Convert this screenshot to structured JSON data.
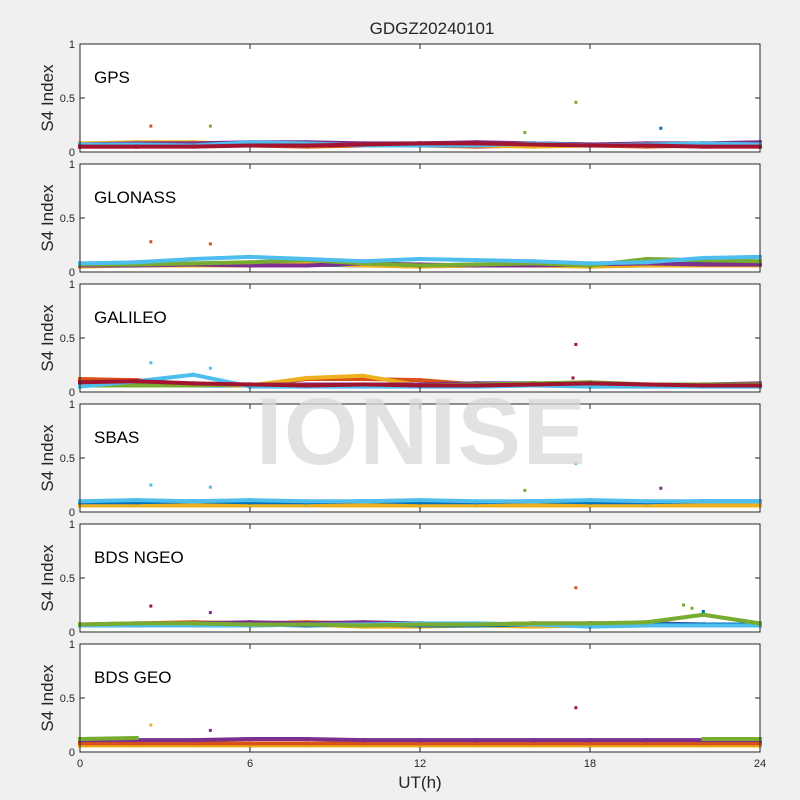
{
  "chart_data": {
    "type": "scatter",
    "title": "GDGZ20240101",
    "xlabel": "UT(h)",
    "ylabel": "S4 Index",
    "xlim": [
      0,
      24
    ],
    "ylim": [
      0,
      1
    ],
    "xticks": [
      "0",
      "6",
      "12",
      "18",
      "24"
    ],
    "yticks": [
      "0",
      "0.5",
      "1"
    ],
    "grid": false,
    "watermark": "IONISE",
    "colors": [
      "#0072BD",
      "#D95319",
      "#EDB120",
      "#7E2F8E",
      "#77AC30",
      "#4DBEEE",
      "#A2142F"
    ],
    "panels": [
      {
        "label": "GPS",
        "x": [
          0,
          2,
          4,
          6,
          8,
          10,
          12,
          14,
          16,
          18,
          20,
          22,
          24
        ],
        "series": [
          {
            "color": "#0072BD",
            "values": [
              0.06,
              0.07,
              0.07,
              0.08,
              0.08,
              0.07,
              0.06,
              0.07,
              0.08,
              0.07,
              0.07,
              0.08,
              0.07
            ]
          },
          {
            "color": "#D95319",
            "values": [
              0.05,
              0.05,
              0.06,
              0.06,
              0.05,
              0.06,
              0.06,
              0.05,
              0.06,
              0.06,
              0.05,
              0.06,
              0.05
            ]
          },
          {
            "color": "#EDB120",
            "values": [
              0.08,
              0.09,
              0.09,
              0.07,
              0.06,
              0.07,
              0.07,
              0.06,
              0.05,
              0.06,
              0.07,
              0.07,
              0.07
            ]
          },
          {
            "color": "#7E2F8E",
            "values": [
              0.07,
              0.08,
              0.08,
              0.09,
              0.09,
              0.08,
              0.08,
              0.09,
              0.08,
              0.07,
              0.08,
              0.08,
              0.09
            ]
          },
          {
            "color": "#4DBEEE",
            "values": [
              0.07,
              0.07,
              0.06,
              0.09,
              0.08,
              0.06,
              0.06,
              0.06,
              0.08,
              0.06,
              0.07,
              0.08,
              0.07
            ]
          },
          {
            "color": "#A2142F",
            "values": [
              0.05,
              0.05,
              0.05,
              0.06,
              0.06,
              0.07,
              0.08,
              0.08,
              0.07,
              0.06,
              0.06,
              0.05,
              0.05
            ]
          }
        ],
        "outliers": [
          {
            "x": 2.5,
            "y": 0.24,
            "color": "#D95319"
          },
          {
            "x": 4.6,
            "y": 0.24,
            "color": "#77AC30"
          },
          {
            "x": 17.5,
            "y": 0.46,
            "color": "#77AC30"
          },
          {
            "x": 20.5,
            "y": 0.22,
            "color": "#0072BD"
          },
          {
            "x": 15.7,
            "y": 0.18,
            "color": "#77AC30"
          }
        ]
      },
      {
        "label": "GLONASS",
        "x": [
          0,
          2,
          4,
          6,
          8,
          10,
          12,
          14,
          16,
          18,
          20,
          22,
          24
        ],
        "series": [
          {
            "color": "#0072BD",
            "values": [
              0.07,
              0.07,
              0.06,
              0.07,
              0.07,
              0.06,
              0.06,
              0.07,
              0.07,
              0.06,
              0.07,
              0.08,
              0.07
            ]
          },
          {
            "color": "#D95319",
            "values": [
              0.07,
              0.06,
              0.07,
              0.08,
              0.07,
              0.07,
              0.06,
              0.06,
              0.07,
              0.07,
              0.07,
              0.07,
              0.08
            ]
          },
          {
            "color": "#EDB120",
            "values": [
              0.05,
              0.06,
              0.06,
              0.06,
              0.08,
              0.06,
              0.05,
              0.06,
              0.06,
              0.05,
              0.06,
              0.06,
              0.06
            ]
          },
          {
            "color": "#7E2F8E",
            "values": [
              0.06,
              0.06,
              0.07,
              0.06,
              0.06,
              0.08,
              0.07,
              0.06,
              0.06,
              0.07,
              0.08,
              0.07,
              0.07
            ]
          },
          {
            "color": "#77AC30",
            "values": [
              0.07,
              0.07,
              0.08,
              0.09,
              0.11,
              0.08,
              0.06,
              0.07,
              0.08,
              0.06,
              0.12,
              0.11,
              0.1
            ]
          },
          {
            "color": "#4DBEEE",
            "values": [
              0.08,
              0.09,
              0.12,
              0.14,
              0.12,
              0.1,
              0.12,
              0.11,
              0.1,
              0.08,
              0.09,
              0.13,
              0.14
            ]
          }
        ],
        "outliers": [
          {
            "x": 2.5,
            "y": 0.28,
            "color": "#D95319"
          },
          {
            "x": 4.6,
            "y": 0.26,
            "color": "#D95319"
          }
        ]
      },
      {
        "label": "GALILEO",
        "x": [
          0,
          2,
          4,
          6,
          8,
          10,
          12,
          14,
          16,
          18,
          20,
          22,
          24
        ],
        "series": [
          {
            "color": "#0072BD",
            "values": [
              0.06,
              0.07,
              0.06,
              0.06,
              0.06,
              0.06,
              0.07,
              0.08,
              0.08,
              0.07,
              0.06,
              0.07,
              0.07
            ]
          },
          {
            "color": "#D95319",
            "values": [
              0.12,
              0.11,
              0.07,
              0.06,
              0.12,
              0.12,
              0.11,
              0.07,
              0.07,
              0.07,
              0.06,
              0.06,
              0.06
            ]
          },
          {
            "color": "#EDB120",
            "values": [
              0.08,
              0.08,
              0.07,
              0.06,
              0.13,
              0.15,
              0.06,
              0.06,
              0.07,
              0.06,
              0.07,
              0.07,
              0.07
            ]
          },
          {
            "color": "#7E2F8E",
            "values": [
              0.07,
              0.08,
              0.07,
              0.07,
              0.07,
              0.07,
              0.07,
              0.08,
              0.08,
              0.07,
              0.06,
              0.07,
              0.08
            ]
          },
          {
            "color": "#77AC30",
            "values": [
              0.06,
              0.06,
              0.06,
              0.07,
              0.06,
              0.06,
              0.06,
              0.07,
              0.08,
              0.09,
              0.07,
              0.07,
              0.07
            ]
          },
          {
            "color": "#4DBEEE",
            "values": [
              0.05,
              0.1,
              0.16,
              0.05,
              0.05,
              0.05,
              0.05,
              0.05,
              0.06,
              0.05,
              0.05,
              0.05,
              0.05
            ]
          },
          {
            "color": "#A2142F",
            "values": [
              0.09,
              0.1,
              0.08,
              0.07,
              0.06,
              0.07,
              0.06,
              0.06,
              0.07,
              0.08,
              0.07,
              0.06,
              0.06
            ]
          }
        ],
        "outliers": [
          {
            "x": 2.5,
            "y": 0.27,
            "color": "#4DBEEE"
          },
          {
            "x": 4.6,
            "y": 0.22,
            "color": "#4DBEEE"
          },
          {
            "x": 17.5,
            "y": 0.44,
            "color": "#A2142F"
          },
          {
            "x": 17.4,
            "y": 0.13,
            "color": "#A2142F"
          }
        ]
      },
      {
        "label": "SBAS",
        "x": [
          0,
          2,
          4,
          6,
          8,
          10,
          12,
          14,
          16,
          18,
          20,
          22,
          24
        ],
        "series": [
          {
            "color": "#EDB120",
            "values": [
              0.06,
              0.06,
              0.06,
              0.06,
              0.06,
              0.06,
              0.06,
              0.06,
              0.06,
              0.06,
              0.06,
              0.06,
              0.06
            ]
          },
          {
            "color": "#0072BD",
            "values": [
              0.09,
              0.09,
              0.1,
              0.09,
              0.09,
              0.1,
              0.09,
              0.09,
              0.1,
              0.09,
              0.09,
              0.1,
              0.1
            ]
          },
          {
            "color": "#4DBEEE",
            "values": [
              0.1,
              0.11,
              0.1,
              0.11,
              0.1,
              0.1,
              0.11,
              0.1,
              0.1,
              0.11,
              0.1,
              0.1,
              0.1
            ]
          }
        ],
        "outliers": [
          {
            "x": 2.5,
            "y": 0.25,
            "color": "#4DBEEE"
          },
          {
            "x": 4.6,
            "y": 0.23,
            "color": "#4DBEEE"
          },
          {
            "x": 17.5,
            "y": 0.45,
            "color": "#4DBEEE"
          },
          {
            "x": 15.7,
            "y": 0.2,
            "color": "#77AC30"
          },
          {
            "x": 20.5,
            "y": 0.22,
            "color": "#7E2F8E"
          }
        ]
      },
      {
        "label": "BDS NGEO",
        "x": [
          0,
          2,
          4,
          6,
          8,
          10,
          12,
          14,
          16,
          18,
          20,
          22,
          24
        ],
        "series": [
          {
            "color": "#A2142F",
            "values": [
              0.06,
              0.06,
              0.07,
              0.08,
              0.08,
              0.07,
              0.06,
              0.06,
              0.07,
              0.08,
              0.07,
              0.07,
              0.06
            ]
          },
          {
            "color": "#D95319",
            "values": [
              0.07,
              0.08,
              0.09,
              0.08,
              0.09,
              0.08,
              0.07,
              0.07,
              0.08,
              0.08,
              0.08,
              0.07,
              0.07
            ]
          },
          {
            "color": "#EDB120",
            "values": [
              0.06,
              0.06,
              0.07,
              0.06,
              0.07,
              0.05,
              0.05,
              0.06,
              0.05,
              0.06,
              0.06,
              0.07,
              0.06
            ]
          },
          {
            "color": "#7E2F8E",
            "values": [
              0.07,
              0.07,
              0.08,
              0.09,
              0.08,
              0.09,
              0.08,
              0.07,
              0.07,
              0.08,
              0.08,
              0.07,
              0.07
            ]
          },
          {
            "color": "#0072BD",
            "values": [
              0.07,
              0.06,
              0.06,
              0.07,
              0.06,
              0.07,
              0.06,
              0.06,
              0.07,
              0.06,
              0.07,
              0.07,
              0.07
            ]
          },
          {
            "color": "#4DBEEE",
            "values": [
              0.06,
              0.06,
              0.06,
              0.06,
              0.07,
              0.07,
              0.08,
              0.08,
              0.07,
              0.05,
              0.06,
              0.06,
              0.06
            ]
          },
          {
            "color": "#77AC30",
            "values": [
              0.07,
              0.08,
              0.08,
              0.07,
              0.07,
              0.06,
              0.07,
              0.07,
              0.08,
              0.08,
              0.09,
              0.16,
              0.08
            ]
          }
        ],
        "outliers": [
          {
            "x": 2.5,
            "y": 0.24,
            "color": "#A2142F"
          },
          {
            "x": 4.6,
            "y": 0.18,
            "color": "#7E2F8E"
          },
          {
            "x": 17.5,
            "y": 0.41,
            "color": "#D95319"
          },
          {
            "x": 21.3,
            "y": 0.25,
            "color": "#77AC30"
          },
          {
            "x": 21.6,
            "y": 0.22,
            "color": "#77AC30"
          },
          {
            "x": 22.0,
            "y": 0.19,
            "color": "#0072BD"
          }
        ]
      },
      {
        "label": "BDS GEO",
        "x": [
          0,
          2,
          4,
          6,
          8,
          10,
          12,
          14,
          16,
          18,
          20,
          22,
          24
        ],
        "series": [
          {
            "color": "#EDB120",
            "values": [
              0.06,
              0.06,
              0.06,
              0.06,
              0.06,
              0.06,
              0.06,
              0.06,
              0.06,
              0.06,
              0.06,
              0.06,
              0.06
            ]
          },
          {
            "color": "#D95319",
            "values": [
              0.08,
              0.08,
              0.08,
              0.08,
              0.08,
              0.08,
              0.08,
              0.08,
              0.08,
              0.08,
              0.08,
              0.08,
              0.08
            ]
          },
          {
            "color": "#7E2F8E",
            "values": [
              0.11,
              0.11,
              0.11,
              0.12,
              0.12,
              0.11,
              0.11,
              0.11,
              0.11,
              0.11,
              0.11,
              0.11,
              0.11
            ]
          },
          {
            "color": "#77AC30",
            "values": [
              0.12,
              0.13,
              null,
              null,
              null,
              null,
              null,
              null,
              null,
              null,
              null,
              0.12,
              0.12
            ]
          }
        ],
        "outliers": [
          {
            "x": 2.5,
            "y": 0.25,
            "color": "#EDB120"
          },
          {
            "x": 4.6,
            "y": 0.2,
            "color": "#7E2F8E"
          },
          {
            "x": 17.5,
            "y": 0.41,
            "color": "#A2142F"
          }
        ]
      }
    ]
  }
}
